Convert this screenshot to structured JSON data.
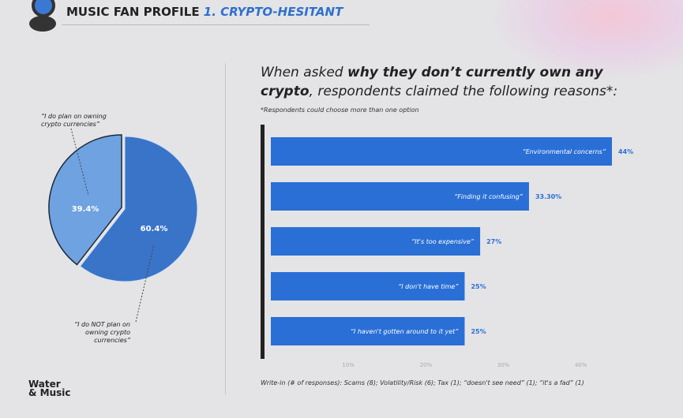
{
  "header": {
    "title": "MUSIC FAN PROFILE",
    "subtitle": "1. CRYPTO-HESITANT"
  },
  "brand": {
    "line1": "Water",
    "line2": "& Music"
  },
  "colors": {
    "accent": "#2f6fcf",
    "bar": "#2a6fd6",
    "pie_dark": "#3a74c9",
    "pie_light": "#6fa2e0"
  },
  "chart_data": [
    {
      "type": "pie",
      "slices": [
        {
          "label": "“I do plan on owning crypto currencies”",
          "value": 39.4,
          "value_label": "39.4%"
        },
        {
          "label": "“I do NOT plan on owning crypto currencies”",
          "value": 60.4,
          "value_label": "60.4%"
        }
      ]
    },
    {
      "type": "bar",
      "orientation": "horizontal",
      "title_plain1": "When asked ",
      "title_bold1": "why they don’t currently own any",
      "title_bold2": "crypto",
      "title_plain2": ", respondents claimed the following reasons*:",
      "note": "*Respondents could choose more than one option",
      "categories": [
        "“Environmental concerns”",
        "“Finding it confusing”",
        "“It's too expensive”",
        "“I don't have time”",
        "“I haven't gotten around to it yet”"
      ],
      "values": [
        44,
        33.3,
        27,
        25,
        25
      ],
      "value_labels": [
        "44%",
        "33.30%",
        "27%",
        "25%",
        "25%"
      ],
      "xticks": [
        "10%",
        "20%",
        "30%",
        "40%"
      ],
      "xtick_values": [
        10,
        20,
        30,
        40
      ],
      "xlim": [
        0,
        44
      ],
      "writein": "Write-in (# of responses): Scams (8); Volatility/Risk (6); Tax (1); “doesn't see need” (1); “it's a fad” (1)"
    }
  ]
}
